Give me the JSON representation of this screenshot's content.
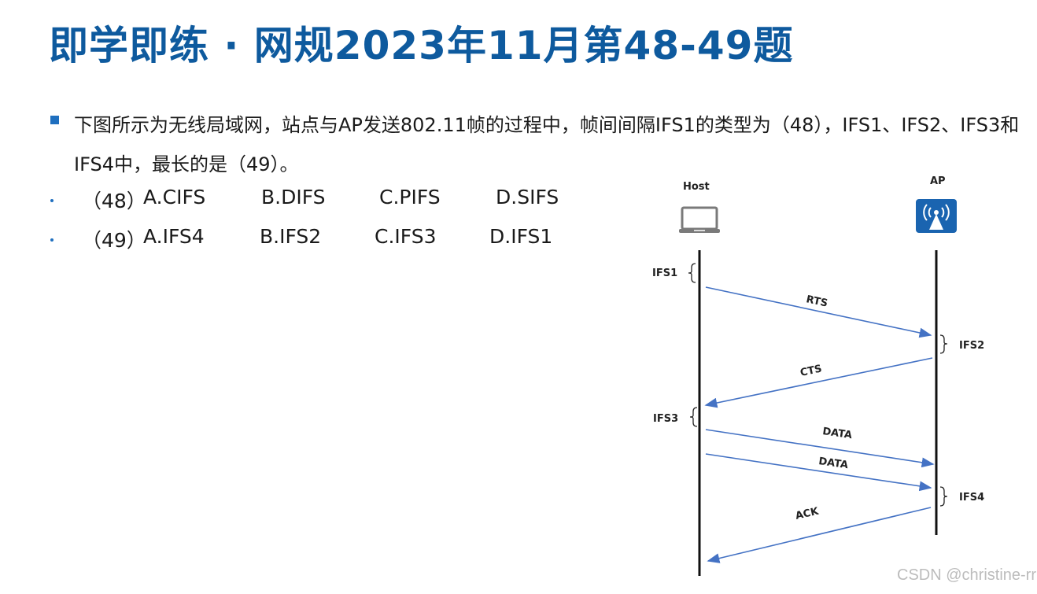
{
  "title": "即学即练 · 网规2023年11月第48-49题",
  "question": "下图所示为无线局域网，站点与AP发送802.11帧的过程中，帧间间隔IFS1的类型为（48），IFS1、IFS2、IFS3和IFS4中，最长的是（49）。",
  "q48": {
    "num": "（48）",
    "a": "A.CIFS",
    "b": "B.DIFS",
    "c": "C.PIFS",
    "d": "D.SIFS"
  },
  "q49": {
    "num": "（49）",
    "a": "A.IFS4",
    "b": "B.IFS2",
    "c": "C.IFS3",
    "d": "D.IFS1"
  },
  "diagram": {
    "host_label": "Host",
    "ap_label": "AP",
    "host_icon": "laptop-icon",
    "ap_icon": "wireless-ap-icon",
    "ifs": [
      "IFS1",
      "IFS2",
      "IFS3",
      "IFS4"
    ],
    "frames": [
      "RTS",
      "CTS",
      "DATA",
      "DATA",
      "ACK"
    ],
    "arrow_color": "#4472c4"
  },
  "watermark": "CSDN @christine-rr",
  "colors": {
    "title": "#0e5a9e",
    "bullet": "#1f6fbf"
  }
}
